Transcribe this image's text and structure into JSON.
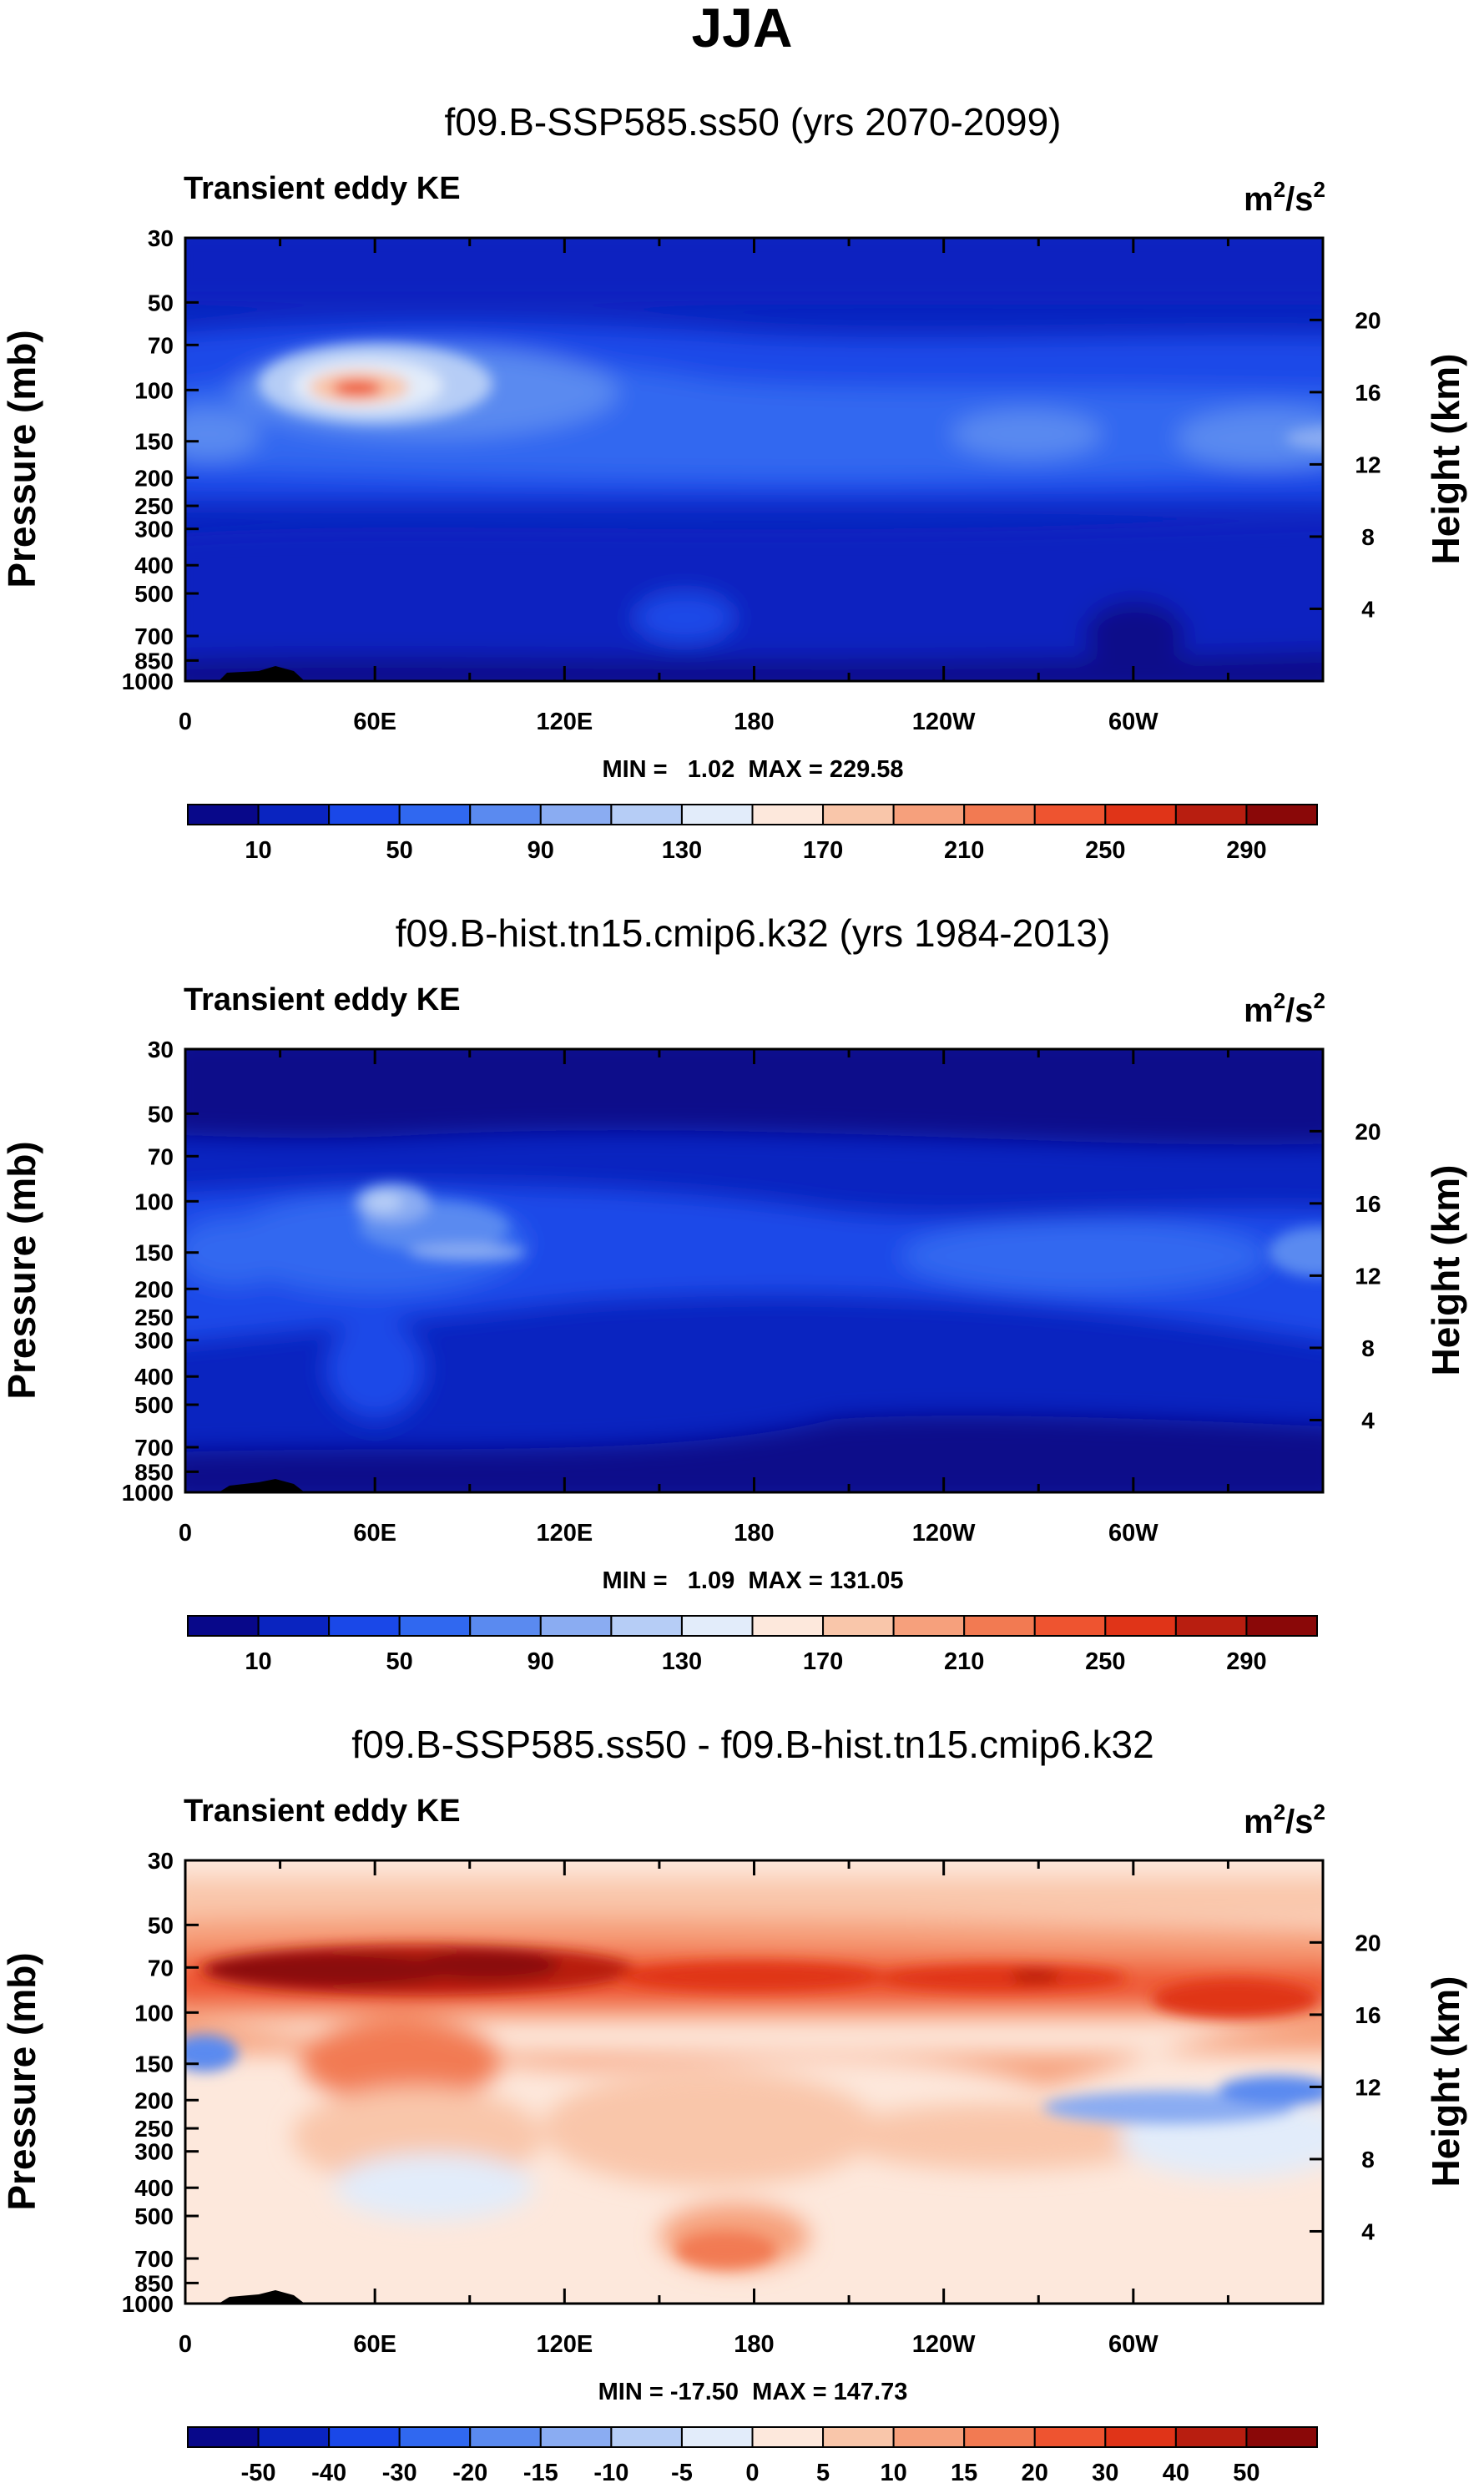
{
  "title": "JJA",
  "chart_data": [
    {
      "type": "heatmap",
      "title": "f09.B-SSP585.ss50 (yrs 2070-2099)",
      "label_left": "Transient eddy KE",
      "units_base": "m",
      "units_sup1": "2",
      "units_mid": "/s",
      "units_sup2": "2",
      "ylabel": "Pressure (mb)",
      "ylabel_right": "Height (km)",
      "yticks": [
        "30",
        "50",
        "70",
        "100",
        "150",
        "200",
        "250",
        "300",
        "400",
        "500",
        "700",
        "850",
        "1000"
      ],
      "yticks_right": [
        "20",
        "16",
        "12",
        "8",
        "4"
      ],
      "xticks": [
        "0",
        "60E",
        "120E",
        "180",
        "120W",
        "60W"
      ],
      "stats": "MIN =   1.02  MAX = 229.58",
      "colorbar_labels": [
        "10",
        "50",
        "90",
        "130",
        "170",
        "210",
        "250",
        "290"
      ],
      "colorbar_colors": [
        "#08088a",
        "#0a24c0",
        "#1a48e8",
        "#3068f0",
        "#5a8af0",
        "#8aacf2",
        "#b6cdf6",
        "#e2ecfa",
        "#fde8dc",
        "#f9c6aa",
        "#f6a07c",
        "#f27a52",
        "#ee5430",
        "#e03418",
        "#b81e10",
        "#8a0808"
      ]
    },
    {
      "type": "heatmap",
      "title": "f09.B-hist.tn15.cmip6.k32 (yrs 1984-2013)",
      "label_left": "Transient eddy KE",
      "units_base": "m",
      "units_sup1": "2",
      "units_mid": "/s",
      "units_sup2": "2",
      "ylabel": "Pressure (mb)",
      "ylabel_right": "Height (km)",
      "yticks": [
        "30",
        "50",
        "70",
        "100",
        "150",
        "200",
        "250",
        "300",
        "400",
        "500",
        "700",
        "850",
        "1000"
      ],
      "yticks_right": [
        "20",
        "16",
        "12",
        "8",
        "4"
      ],
      "xticks": [
        "0",
        "60E",
        "120E",
        "180",
        "120W",
        "60W"
      ],
      "stats": "MIN =   1.09  MAX = 131.05",
      "colorbar_labels": [
        "10",
        "50",
        "90",
        "130",
        "170",
        "210",
        "250",
        "290"
      ],
      "colorbar_colors": [
        "#08088a",
        "#0a24c0",
        "#1a48e8",
        "#3068f0",
        "#5a8af0",
        "#8aacf2",
        "#b6cdf6",
        "#e2ecfa",
        "#fde8dc",
        "#f9c6aa",
        "#f6a07c",
        "#f27a52",
        "#ee5430",
        "#e03418",
        "#b81e10",
        "#8a0808"
      ]
    },
    {
      "type": "heatmap",
      "title": "f09.B-SSP585.ss50 - f09.B-hist.tn15.cmip6.k32",
      "label_left": "Transient eddy KE",
      "units_base": "m",
      "units_sup1": "2",
      "units_mid": "/s",
      "units_sup2": "2",
      "ylabel": "Pressure (mb)",
      "ylabel_right": "Height (km)",
      "yticks": [
        "30",
        "50",
        "70",
        "100",
        "150",
        "200",
        "250",
        "300",
        "400",
        "500",
        "700",
        "850",
        "1000"
      ],
      "yticks_right": [
        "20",
        "16",
        "12",
        "8",
        "4"
      ],
      "xticks": [
        "0",
        "60E",
        "120E",
        "180",
        "120W",
        "60W"
      ],
      "stats": "MIN = -17.50  MAX = 147.73",
      "colorbar_labels": [
        "-50",
        "-40",
        "-30",
        "-20",
        "-15",
        "-10",
        "-5",
        "0",
        "5",
        "10",
        "15",
        "20",
        "30",
        "40",
        "50"
      ],
      "colorbar_colors": [
        "#08088a",
        "#0a24c0",
        "#1a48e8",
        "#3068f0",
        "#5a8af0",
        "#8aacf2",
        "#b6cdf6",
        "#e2ecfa",
        "#fde8dc",
        "#f9c6aa",
        "#f6a07c",
        "#f27a52",
        "#ee5430",
        "#e03418",
        "#b81e10",
        "#8a0808"
      ]
    }
  ]
}
